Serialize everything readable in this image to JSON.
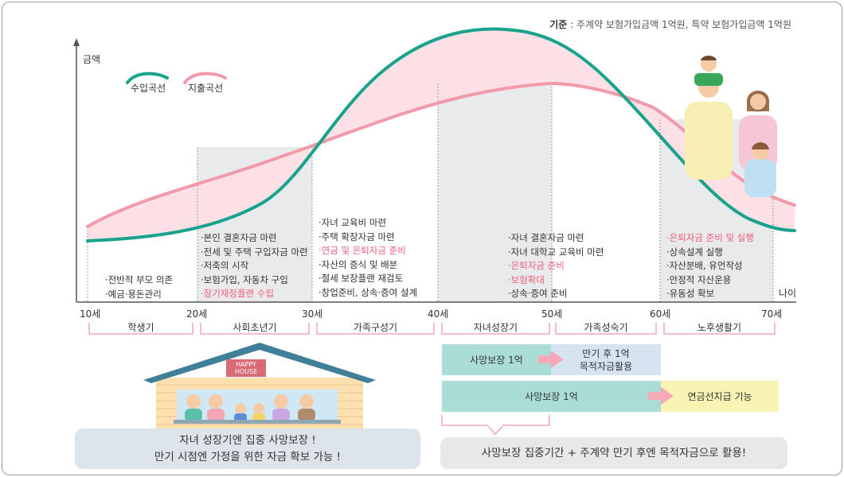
{
  "note": {
    "label": "기준",
    "text": " : 주계약 보험가입금액 1억원, 특약 보험가입금액 1억원"
  },
  "axes": {
    "y_label": "금액",
    "x_end_label": "나이"
  },
  "legend": {
    "income": {
      "label": "수입곡선",
      "color": "#1aa38c"
    },
    "expense": {
      "label": "지출곡선",
      "color": "#f29aaa"
    }
  },
  "ticks": [
    "10세",
    "20세",
    "30세",
    "40세",
    "50세",
    "60세",
    "70세"
  ],
  "stages": [
    "학생기",
    "사회초년기",
    "가족구성기",
    "자녀성장기",
    "가족성숙기",
    "노후생활기"
  ],
  "bullets": {
    "student": [
      "·전반적 부모 의존",
      "·예금·용돈관리"
    ],
    "early_career": [
      "·본인 결혼자금 마련",
      "·전세 및 주택 구입자금 마련",
      "·저축의 시작",
      "·보험가입, 자동차 구입",
      "·장기재정플랜 수립"
    ],
    "family_formation": [
      "·자녀 교육비 마련",
      "·주택 확장자금 마련",
      "·연금 및 은퇴자금 준비",
      "·자산의 증식 및 배분",
      "·절세 보장플랜 재검토",
      "·창업준비, 상속·증여 설계"
    ],
    "child_growth": [
      "·자녀 결혼자금 마련",
      "·자녀 대학교 교육비 마련",
      "·은퇴자금 준비",
      "·보험확대",
      "·상속·증여 준비"
    ],
    "retirement": [
      "·은퇴자금 준비 및 실행",
      "·상속설계 실행",
      "·자산분배, 유언작성",
      "·안정적 자산운용",
      "·유동성 확보"
    ]
  },
  "coverage": {
    "row1_left": "사망보장 1억",
    "row1_right": [
      "만기 후 1억",
      "목적자금활용"
    ],
    "row2_left": "사망보장 1억",
    "row2_right": "연금선지급 기능"
  },
  "house": {
    "sign": [
      "HAPPY",
      "HOUSE"
    ]
  },
  "captions": {
    "left": [
      "자녀 성장기엔 집중 사망보장 !",
      "만기 시점엔 가정을 위한 자금 확보 가능 !"
    ],
    "right": "사망보장 집중기간 + 주계약 만기 후엔 목적자금으로 활용!"
  },
  "colors": {
    "shade": "#e9eaec",
    "fill_between": "#fbe0e5",
    "stage_bracket": "#f2a7b5",
    "teal_box": "#a9ddd6",
    "blue_box": "#d6e4f2",
    "yellow_box": "#f9f3b4",
    "arrow": "#f6a9b8",
    "caption_left": "#dde4ea",
    "caption_right": "#e8e8e8",
    "house_roof": "#3f7f99",
    "house_wall": "#fde0ae",
    "pink_text": "#ef5d7b"
  }
}
